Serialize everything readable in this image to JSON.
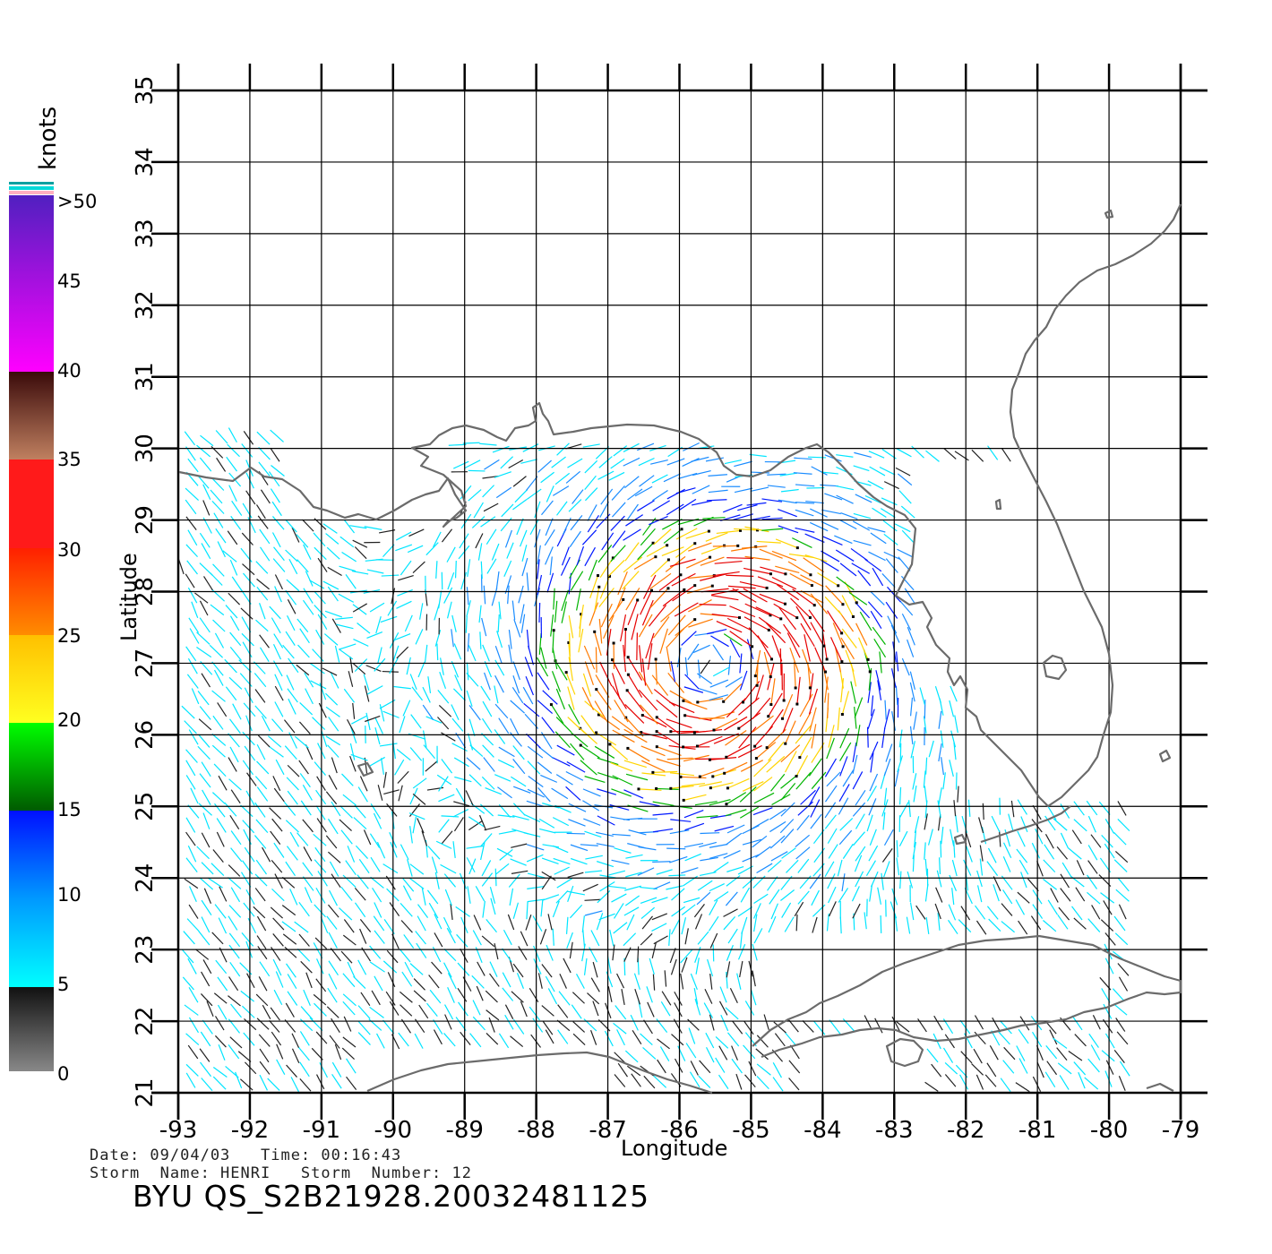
{
  "map": {
    "lon_range": [
      -93,
      -79
    ],
    "lat_range": [
      21,
      35
    ],
    "x_ticks": [
      "-93",
      "-92",
      "-91",
      "-90",
      "-89",
      "-88",
      "-87",
      "-86",
      "-85",
      "-84",
      "-83",
      "-82",
      "-81",
      "-80",
      "-79"
    ],
    "y_ticks": [
      "21",
      "22",
      "23",
      "24",
      "25",
      "26",
      "27",
      "28",
      "29",
      "30",
      "31",
      "32",
      "33",
      "34",
      "35"
    ],
    "xlabel": "Longitude",
    "ylabel": "Latitude",
    "grid": true,
    "coastline_color": "#6b6b6b"
  },
  "legend": {
    "unit": "knots",
    "labels": [
      "0",
      "5",
      "10",
      "15",
      "20",
      "25",
      "30",
      "35",
      "40",
      "45",
      ">50"
    ],
    "colors": {
      "black": "#222222",
      "cyan": "#00e5ff",
      "light_blue": "#1a8cff",
      "blue": "#0018ff",
      "green": "#00b400",
      "yellow": "#ffd400",
      "orange": "#ff7a00",
      "red": "#e60000"
    }
  },
  "info": {
    "date_time": "Date: 09/04/03   Time: 00:16:43",
    "storm": "Storm  Name: HENRI   Storm  Number: 12",
    "product_id": "BYU  QS_S2B21928.20032481125"
  }
}
